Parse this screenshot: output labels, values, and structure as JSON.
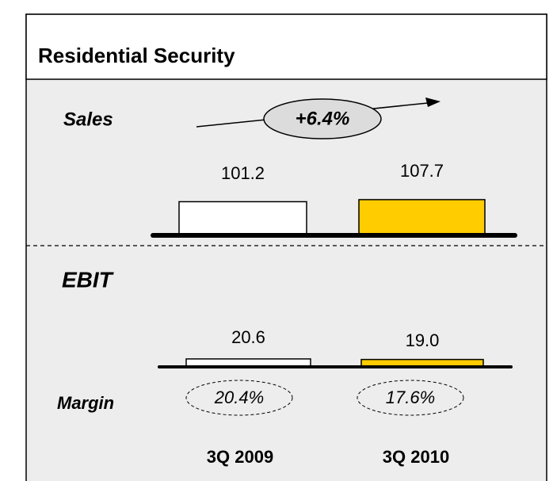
{
  "title": "Residential Security",
  "chart_data": [
    {
      "type": "bar",
      "title": "Sales",
      "categories": [
        "3Q 2009",
        "3Q 2010"
      ],
      "values": [
        101.2,
        107.7
      ],
      "colors": [
        "#ffffff",
        "#ffcc00"
      ],
      "ylim": [
        0,
        250
      ],
      "annotation": "+6.4%"
    },
    {
      "type": "bar",
      "title": "EBIT",
      "categories": [
        "3Q 2009",
        "3Q 2010"
      ],
      "values": [
        20.6,
        19.0
      ],
      "value_labels": [
        "20.6",
        "19.0"
      ],
      "colors": [
        "#ffffff",
        "#ffcc00"
      ],
      "ylim": [
        0,
        50
      ],
      "margin": {
        "label": "Margin",
        "values": [
          "20.4%",
          "17.6%"
        ]
      }
    }
  ]
}
